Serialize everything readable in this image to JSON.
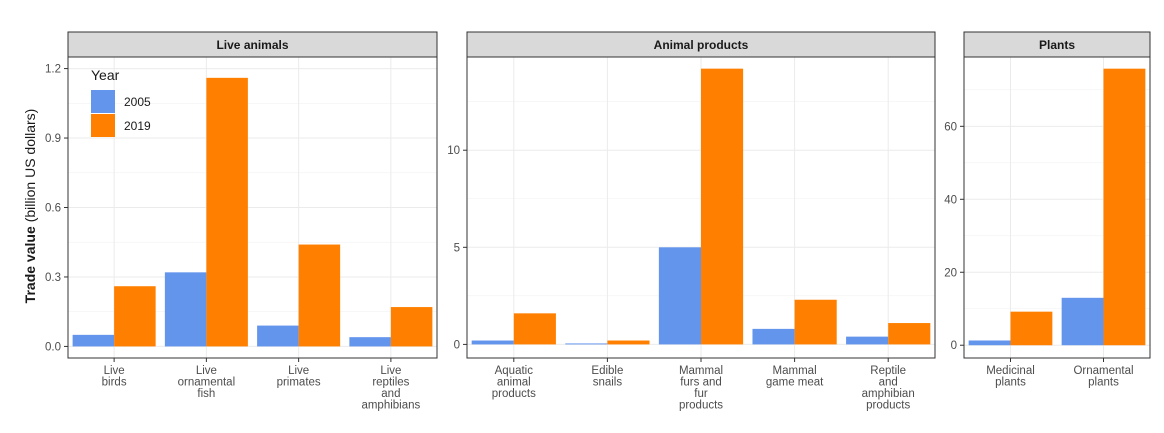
{
  "chart_data": {
    "type": "bar",
    "ylabel_bold": "Trade value",
    "ylabel_rest": "(billion US dollars)",
    "legend": {
      "title": "Year",
      "placement": "top-left",
      "entries": [
        {
          "label": "2005",
          "color": "#6495ED"
        },
        {
          "label": "2019",
          "color": "#FF8000"
        }
      ]
    },
    "grid": true,
    "panels": [
      {
        "title": "Live animals",
        "ylim": [
          -0.05,
          1.25
        ],
        "yticks": [
          0.0,
          0.3,
          0.6,
          0.9,
          1.2
        ],
        "ytick_labels": [
          "0.0",
          "0.3",
          "0.6",
          "0.9",
          "1.2"
        ],
        "categories": [
          [
            "Live",
            "birds"
          ],
          [
            "Live",
            "ornamental",
            "fish"
          ],
          [
            "Live",
            "primates"
          ],
          [
            "Live",
            "reptiles",
            "and",
            "amphibians"
          ]
        ],
        "series": [
          {
            "name": "2005",
            "values": [
              0.05,
              0.32,
              0.09,
              0.04
            ]
          },
          {
            "name": "2019",
            "values": [
              0.26,
              1.16,
              0.44,
              0.17
            ]
          }
        ]
      },
      {
        "title": "Animal products",
        "ylim": [
          -0.7,
          14.8
        ],
        "yticks": [
          0,
          5,
          10
        ],
        "ytick_labels": [
          "0",
          "5",
          "10"
        ],
        "categories": [
          [
            "Aquatic",
            "animal",
            "products"
          ],
          [
            "Edible",
            "snails"
          ],
          [
            "Mammal",
            "furs and",
            "fur",
            "products"
          ],
          [
            "Mammal",
            "game meat"
          ],
          [
            "Reptile",
            "and",
            "amphibian",
            "products"
          ]
        ],
        "series": [
          {
            "name": "2005",
            "values": [
              0.2,
              0.05,
              5.0,
              0.8,
              0.4
            ]
          },
          {
            "name": "2019",
            "values": [
              1.6,
              0.2,
              14.2,
              2.3,
              1.1
            ]
          }
        ]
      },
      {
        "title": "Plants",
        "ylim": [
          -3.5,
          79
        ],
        "yticks": [
          0,
          20,
          40,
          60
        ],
        "ytick_labels": [
          "0",
          "20",
          "40",
          "60"
        ],
        "categories": [
          [
            "Medicinal",
            "plants"
          ],
          [
            "Ornamental",
            "plants"
          ]
        ],
        "series": [
          {
            "name": "2005",
            "values": [
              1.3,
              13.0
            ]
          },
          {
            "name": "2019",
            "values": [
              9.2,
              75.8
            ]
          }
        ]
      }
    ]
  }
}
